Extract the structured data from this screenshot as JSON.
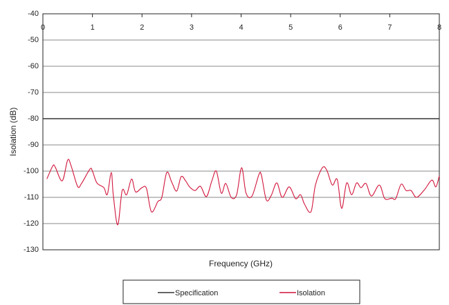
{
  "chart_data": {
    "type": "line",
    "xlabel": "Frequency (GHz)",
    "ylabel": "Isolation (dB)",
    "xlim": [
      0,
      8
    ],
    "xticks": [
      0,
      1,
      2,
      3,
      4,
      5,
      6,
      7,
      8
    ],
    "ylim": [
      -130,
      -40
    ],
    "yticks": [
      -40,
      -50,
      -60,
      -70,
      -80,
      -90,
      -100,
      -110,
      -120,
      -130
    ],
    "grid": true,
    "legend": "bottom",
    "series": [
      {
        "name": "Specification",
        "color": "#333333",
        "x": [
          0,
          8
        ],
        "values": [
          -80,
          -80
        ]
      },
      {
        "name": "Isolation",
        "color": "#d2143a",
        "x": [
          0.08,
          0.2,
          0.25,
          0.39,
          0.5,
          0.57,
          0.7,
          0.78,
          0.95,
          1.0,
          1.09,
          1.23,
          1.3,
          1.38,
          1.42,
          1.51,
          1.6,
          1.69,
          1.79,
          1.87,
          2.0,
          2.09,
          2.19,
          2.32,
          2.4,
          2.5,
          2.6,
          2.7,
          2.79,
          2.88,
          2.96,
          3.07,
          3.18,
          3.3,
          3.41,
          3.5,
          3.6,
          3.69,
          3.8,
          3.91,
          4.01,
          4.1,
          4.22,
          4.36,
          4.41,
          4.51,
          4.61,
          4.72,
          4.83,
          4.97,
          5.1,
          5.2,
          5.28,
          5.41,
          5.5,
          5.64,
          5.73,
          5.84,
          5.94,
          6.03,
          6.13,
          6.23,
          6.33,
          6.42,
          6.52,
          6.63,
          6.79,
          6.9,
          7.04,
          7.12,
          7.23,
          7.33,
          7.43,
          7.54,
          7.7,
          7.85,
          7.93,
          8.0
        ],
        "values": [
          -103,
          -98,
          -98.5,
          -103.7,
          -95.8,
          -98,
          -105.8,
          -104.7,
          -99.2,
          -100,
          -104.5,
          -106.3,
          -108.9,
          -100.5,
          -109,
          -120.5,
          -107.4,
          -109,
          -103,
          -107.9,
          -106.3,
          -106.6,
          -115.5,
          -111.6,
          -110,
          -100.5,
          -104.2,
          -107.6,
          -102.1,
          -103.7,
          -106,
          -107.4,
          -105.8,
          -109.7,
          -103.7,
          -100,
          -108.4,
          -104.7,
          -110,
          -109,
          -98.7,
          -108.4,
          -109.5,
          -101.3,
          -101.6,
          -111,
          -109.2,
          -104.5,
          -110,
          -106,
          -110.5,
          -109,
          -112.6,
          -115.5,
          -105.3,
          -98.7,
          -99.7,
          -105.3,
          -103.2,
          -114.2,
          -104.5,
          -109,
          -104.5,
          -106.3,
          -104.7,
          -109.5,
          -105.3,
          -110.5,
          -110.3,
          -110.5,
          -105,
          -107.4,
          -107.4,
          -110,
          -107.1,
          -103.4,
          -106,
          -101.8
        ]
      }
    ]
  }
}
